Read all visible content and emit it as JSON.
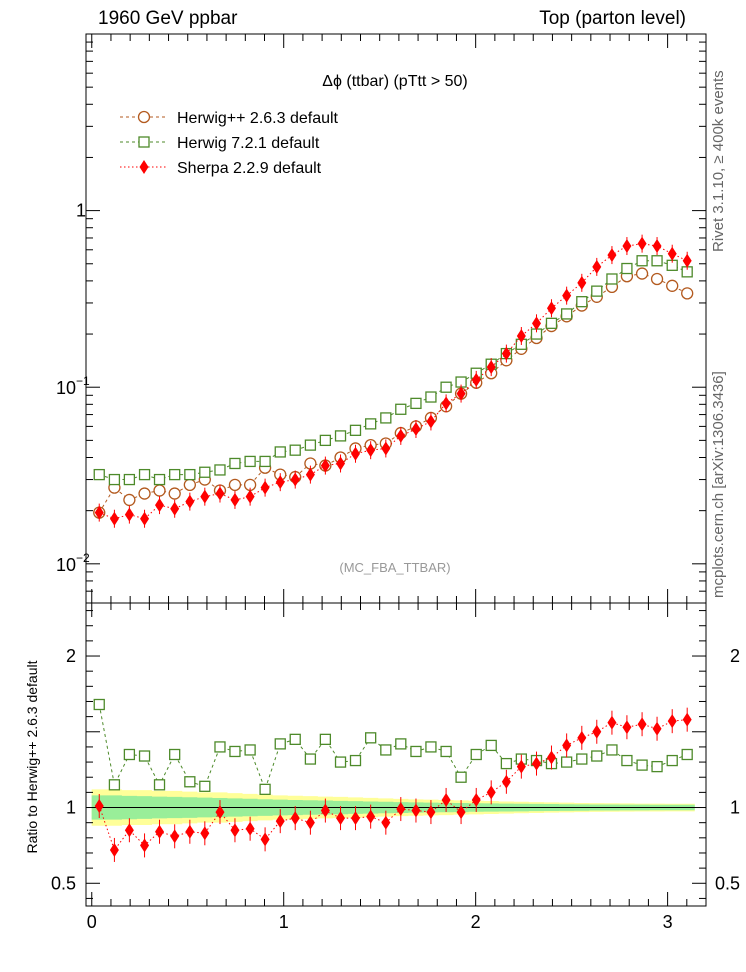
{
  "header": {
    "left": "1960 GeV ppbar",
    "right": "Top (parton level)"
  },
  "side": {
    "rivet": "Rivet 3.1.10, ≥ 400k events",
    "mcplots": "mcplots.cern.ch [arXiv:1306.3436]"
  },
  "colors": {
    "herwigpp": "#b35a1f",
    "herwig7": "#4d8a2a",
    "sherpa": "#ff0000",
    "band_outer": "#ffff99",
    "band_inner": "#99ee99"
  },
  "chart_data": [
    {
      "type": "line",
      "title": "Δϕ (ttbar) (pTtt > 50)",
      "watermark": "(MC_FBA_TTBAR)",
      "yscale": "log",
      "ylim": [
        0.006,
        10
      ],
      "xlim": [
        -0.03,
        3.2
      ],
      "ytick_labels": [
        {
          "value": 1,
          "base": "1",
          "exp": ""
        },
        {
          "value": 0.1,
          "base": "10",
          "exp": "−1"
        },
        {
          "value": 0.01,
          "base": "10",
          "exp": "−2"
        }
      ],
      "legend_position": "top-left",
      "x": [
        0.039,
        0.118,
        0.196,
        0.275,
        0.353,
        0.432,
        0.511,
        0.589,
        0.668,
        0.746,
        0.825,
        0.903,
        0.982,
        1.06,
        1.139,
        1.217,
        1.296,
        1.374,
        1.453,
        1.532,
        1.61,
        1.689,
        1.767,
        1.846,
        1.924,
        2.003,
        2.081,
        2.16,
        2.238,
        2.317,
        2.395,
        2.474,
        2.553,
        2.631,
        2.71,
        2.788,
        2.867,
        2.945,
        3.024,
        3.102
      ],
      "series": [
        {
          "name": "Herwig++ 2.6.3 default",
          "marker": "open-circle",
          "style": "dashed",
          "color": "#b35a1f",
          "values": [
            0.0195,
            0.027,
            0.023,
            0.025,
            0.026,
            0.025,
            0.028,
            0.03,
            0.026,
            0.028,
            0.028,
            0.035,
            0.032,
            0.031,
            0.037,
            0.036,
            0.04,
            0.045,
            0.047,
            0.048,
            0.055,
            0.06,
            0.067,
            0.078,
            0.092,
            0.106,
            0.12,
            0.142,
            0.165,
            0.19,
            0.222,
            0.252,
            0.29,
            0.325,
            0.37,
            0.425,
            0.44,
            0.41,
            0.375,
            0.34
          ]
        },
        {
          "name": "Herwig 7.2.1 default",
          "marker": "open-square",
          "style": "dashed",
          "color": "#4d8a2a",
          "values": [
            0.032,
            0.03,
            0.03,
            0.032,
            0.03,
            0.032,
            0.032,
            0.033,
            0.034,
            0.037,
            0.038,
            0.038,
            0.043,
            0.044,
            0.047,
            0.05,
            0.053,
            0.057,
            0.062,
            0.067,
            0.075,
            0.081,
            0.088,
            0.1,
            0.107,
            0.12,
            0.135,
            0.155,
            0.175,
            0.2,
            0.23,
            0.26,
            0.305,
            0.35,
            0.41,
            0.47,
            0.52,
            0.52,
            0.49,
            0.45
          ]
        },
        {
          "name": "Sherpa 2.2.9 default",
          "marker": "filled-diamond",
          "style": "dotted",
          "color": "#ff0000",
          "values": [
            0.0195,
            0.018,
            0.019,
            0.018,
            0.0215,
            0.0205,
            0.0225,
            0.024,
            0.025,
            0.023,
            0.024,
            0.027,
            0.029,
            0.03,
            0.032,
            0.036,
            0.037,
            0.042,
            0.044,
            0.045,
            0.053,
            0.058,
            0.064,
            0.081,
            0.092,
            0.11,
            0.13,
            0.155,
            0.195,
            0.23,
            0.28,
            0.33,
            0.39,
            0.48,
            0.56,
            0.63,
            0.65,
            0.63,
            0.57,
            0.52
          ]
        }
      ]
    },
    {
      "type": "line",
      "ylabel": "Ratio to Herwig++ 2.6.3 default",
      "ylim": [
        0.35,
        2.35
      ],
      "xlim": [
        -0.03,
        3.2
      ],
      "ytick_labels": [
        {
          "value": 2,
          "label": "2"
        },
        {
          "value": 1,
          "label": "1"
        },
        {
          "value": 0.5,
          "label": "0.5"
        }
      ],
      "xtick_labels": [
        {
          "value": 0,
          "label": "0"
        },
        {
          "value": 1,
          "label": "1"
        },
        {
          "value": 2,
          "label": "2"
        },
        {
          "value": 3,
          "label": "3"
        }
      ],
      "x": [
        0.039,
        0.118,
        0.196,
        0.275,
        0.353,
        0.432,
        0.511,
        0.589,
        0.668,
        0.746,
        0.825,
        0.903,
        0.982,
        1.06,
        1.139,
        1.217,
        1.296,
        1.374,
        1.453,
        1.532,
        1.61,
        1.689,
        1.767,
        1.846,
        1.924,
        2.003,
        2.081,
        2.16,
        2.238,
        2.317,
        2.395,
        2.474,
        2.553,
        2.631,
        2.71,
        2.788,
        2.867,
        2.945,
        3.024,
        3.102
      ],
      "band_outer": [
        0.12,
        0.12,
        0.115,
        0.115,
        0.11,
        0.11,
        0.105,
        0.1,
        0.1,
        0.095,
        0.09,
        0.085,
        0.08,
        0.078,
        0.075,
        0.072,
        0.07,
        0.067,
        0.064,
        0.06,
        0.057,
        0.054,
        0.052,
        0.05,
        0.047,
        0.045,
        0.043,
        0.04,
        0.038,
        0.036,
        0.034,
        0.032,
        0.03,
        0.029,
        0.028,
        0.027,
        0.026,
        0.026,
        0.025,
        0.025
      ],
      "band_inner": [
        0.08,
        0.08,
        0.077,
        0.075,
        0.072,
        0.07,
        0.068,
        0.065,
        0.063,
        0.06,
        0.058,
        0.055,
        0.052,
        0.05,
        0.048,
        0.046,
        0.044,
        0.042,
        0.04,
        0.038,
        0.036,
        0.034,
        0.032,
        0.031,
        0.03,
        0.028,
        0.027,
        0.026,
        0.025,
        0.024,
        0.023,
        0.022,
        0.021,
        0.02,
        0.02,
        0.019,
        0.019,
        0.018,
        0.018,
        0.018
      ],
      "series": [
        {
          "name": "Herwig 7.2.1 default",
          "marker": "open-square",
          "style": "dashed",
          "color": "#4d8a2a",
          "values": [
            1.68,
            1.15,
            1.35,
            1.34,
            1.15,
            1.35,
            1.17,
            1.14,
            1.4,
            1.37,
            1.38,
            1.12,
            1.42,
            1.45,
            1.32,
            1.45,
            1.3,
            1.31,
            1.46,
            1.38,
            1.42,
            1.37,
            1.4,
            1.37,
            1.2,
            1.35,
            1.41,
            1.29,
            1.32,
            1.31,
            1.29,
            1.3,
            1.32,
            1.34,
            1.38,
            1.31,
            1.28,
            1.27,
            1.31,
            1.35
          ]
        },
        {
          "name": "Sherpa 2.2.9 default",
          "marker": "filled-diamond",
          "style": "dotted",
          "color": "#ff0000",
          "values": [
            1.01,
            0.72,
            0.85,
            0.75,
            0.84,
            0.81,
            0.84,
            0.83,
            0.97,
            0.85,
            0.86,
            0.79,
            0.91,
            0.93,
            0.9,
            0.98,
            0.93,
            0.93,
            0.94,
            0.9,
            0.99,
            0.98,
            0.97,
            1.05,
            0.97,
            1.05,
            1.1,
            1.17,
            1.27,
            1.29,
            1.33,
            1.41,
            1.46,
            1.5,
            1.56,
            1.53,
            1.55,
            1.52,
            1.57,
            1.58
          ]
        }
      ]
    }
  ]
}
